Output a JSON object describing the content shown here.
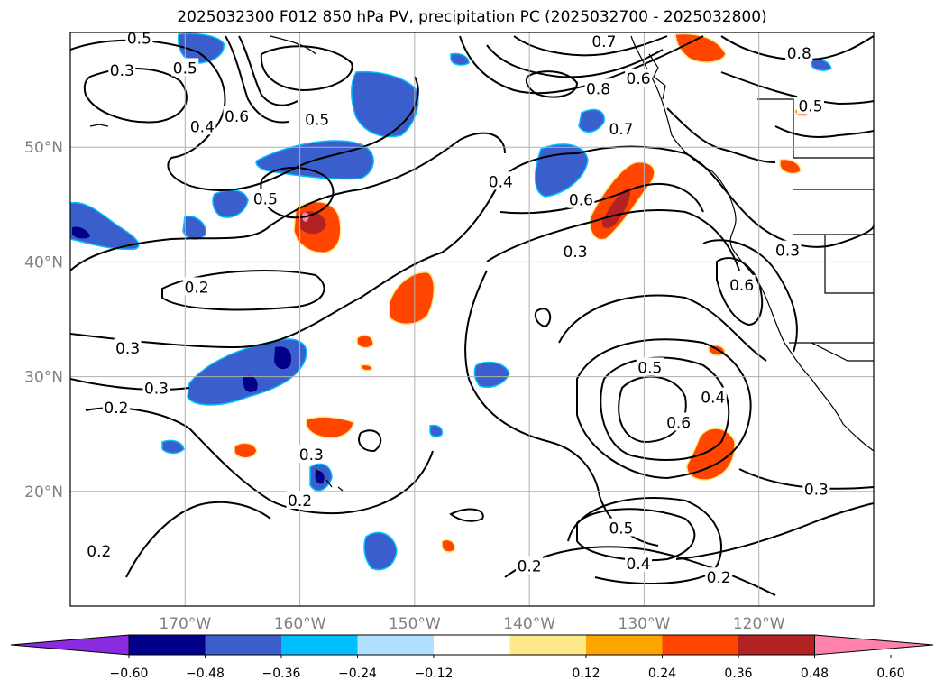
{
  "title": "2025032300 F012 850 hPa PV, precipitation PC (2025032700 - 2025032800)",
  "map": {
    "lon_range": [
      -180,
      -110
    ],
    "lat_range": [
      10,
      60
    ],
    "lon_ticks": [
      {
        "value": -170,
        "label": "170°W"
      },
      {
        "value": -160,
        "label": "160°W"
      },
      {
        "value": -150,
        "label": "150°W"
      },
      {
        "value": -140,
        "label": "140°W"
      },
      {
        "value": -130,
        "label": "130°W"
      },
      {
        "value": -120,
        "label": "120°W"
      }
    ],
    "lat_ticks": [
      {
        "value": 20,
        "label": "20°N"
      },
      {
        "value": 30,
        "label": "30°N"
      },
      {
        "value": 40,
        "label": "40°N"
      },
      {
        "value": 50,
        "label": "50°N"
      }
    ],
    "gridlines": true,
    "contour_labels": [
      {
        "text": "0.5",
        "lon": -174,
        "lat": 59.5
      },
      {
        "text": "0.3",
        "lon": -175.5,
        "lat": 56.7
      },
      {
        "text": "0.5",
        "lon": -170,
        "lat": 56.9
      },
      {
        "text": "0.4",
        "lon": -168.5,
        "lat": 51.8
      },
      {
        "text": "0.6",
        "lon": -165.5,
        "lat": 52.7
      },
      {
        "text": "0.5",
        "lon": -158.5,
        "lat": 52.4
      },
      {
        "text": "0.7",
        "lon": -133.5,
        "lat": 59.2
      },
      {
        "text": "0.8",
        "lon": -134,
        "lat": 55.1
      },
      {
        "text": "0.6",
        "lon": -130.5,
        "lat": 56.0
      },
      {
        "text": "0.8",
        "lon": -116.5,
        "lat": 58.2
      },
      {
        "text": "0.5",
        "lon": -115.5,
        "lat": 53.6
      },
      {
        "text": "0.7",
        "lon": -132,
        "lat": 51.6
      },
      {
        "text": "0.5",
        "lon": -163,
        "lat": 45.5
      },
      {
        "text": "0.4",
        "lon": -142.5,
        "lat": 47.0
      },
      {
        "text": "0.6",
        "lon": -135.5,
        "lat": 45.4
      },
      {
        "text": "0.3",
        "lon": -136,
        "lat": 40.9
      },
      {
        "text": "0.3",
        "lon": -117.5,
        "lat": 41.0
      },
      {
        "text": "0.6",
        "lon": -121.5,
        "lat": 38.0
      },
      {
        "text": "0.2",
        "lon": -169,
        "lat": 37.8
      },
      {
        "text": "0.3",
        "lon": -175,
        "lat": 32.5
      },
      {
        "text": "0.3",
        "lon": -172.5,
        "lat": 29.0
      },
      {
        "text": "0.5",
        "lon": -129.5,
        "lat": 30.8
      },
      {
        "text": "0.4",
        "lon": -124,
        "lat": 28.2
      },
      {
        "text": "0.6",
        "lon": -127,
        "lat": 26.0
      },
      {
        "text": "0.2",
        "lon": -176,
        "lat": 27.3
      },
      {
        "text": "0.3",
        "lon": -159,
        "lat": 23.2
      },
      {
        "text": "0.2",
        "lon": -160,
        "lat": 19.2
      },
      {
        "text": "0.3",
        "lon": -115,
        "lat": 20.2
      },
      {
        "text": "0.5",
        "lon": -132,
        "lat": 16.8
      },
      {
        "text": "0.2",
        "lon": -177.5,
        "lat": 14.8
      },
      {
        "text": "0.2",
        "lon": -140,
        "lat": 13.5
      },
      {
        "text": "0.4",
        "lon": -130.5,
        "lat": 13.7
      },
      {
        "text": "0.2",
        "lon": -123.5,
        "lat": 12.5
      }
    ]
  },
  "colorbar": {
    "ticks": [
      "−0.60",
      "−0.48",
      "−0.36",
      "−0.24",
      "−0.12",
      "0.12",
      "0.24",
      "0.36",
      "0.48",
      "0.60"
    ],
    "colors": [
      "#8a2be2",
      "#00008b",
      "#3a5fcd",
      "#00bfff",
      "#b0e2ff",
      "#ffffff",
      "#fde88a",
      "#ffa500",
      "#ff4500",
      "#b22222",
      "#ff82ab"
    ]
  }
}
